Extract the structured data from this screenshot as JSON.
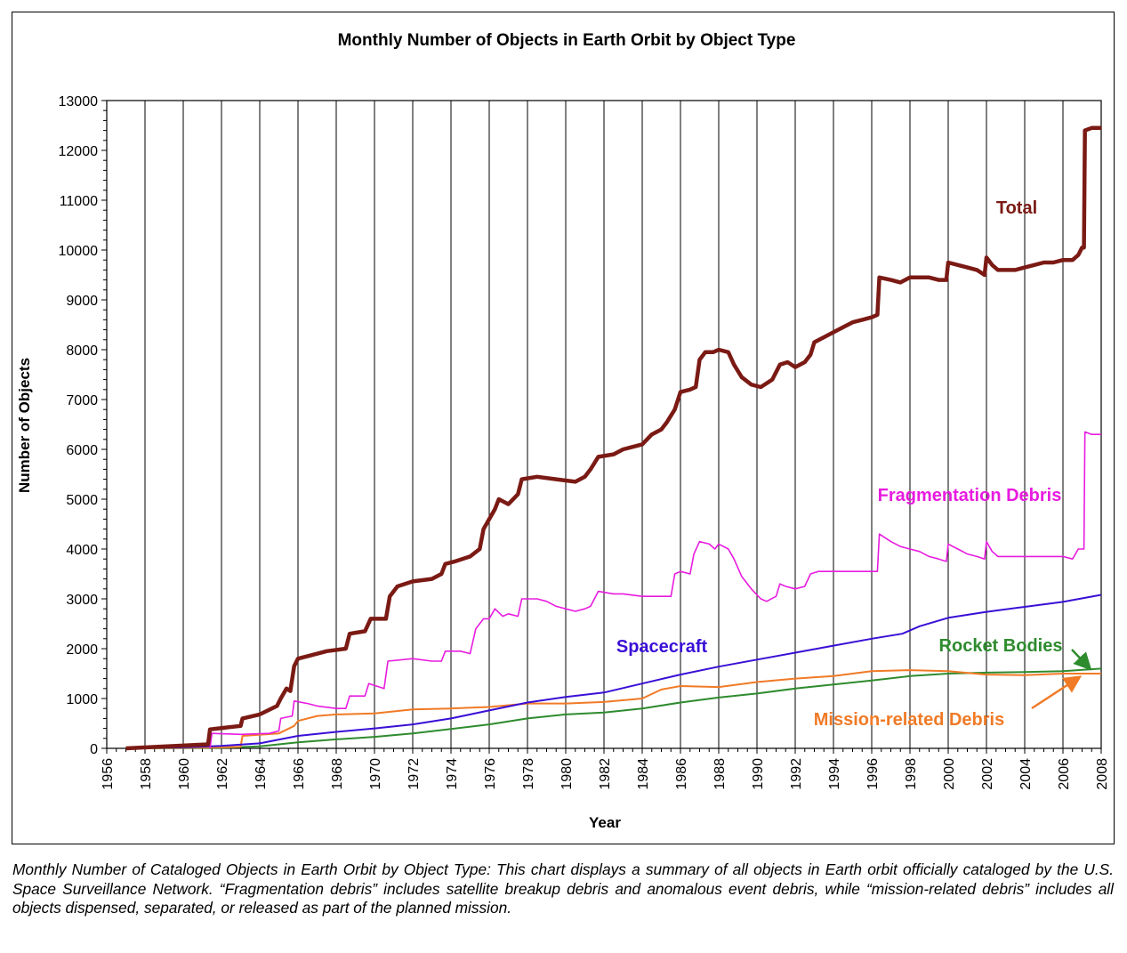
{
  "chart_data": {
    "type": "line",
    "title": "Monthly Number of Objects in Earth Orbit by Object Type",
    "xlabel": "Year",
    "ylabel": "Number of Objects",
    "xlim": [
      1956,
      2008
    ],
    "ylim": [
      0,
      13000
    ],
    "x_ticks": [
      "1956",
      "1958",
      "1960",
      "1962",
      "1964",
      "1966",
      "1968",
      "1970",
      "1972",
      "1974",
      "1976",
      "1978",
      "1980",
      "1982",
      "1984",
      "1986",
      "1988",
      "1990",
      "1992",
      "1994",
      "1996",
      "1998",
      "2000",
      "2002",
      "2004",
      "2006",
      "2008"
    ],
    "y_ticks": [
      "0",
      "1000",
      "2000",
      "3000",
      "4000",
      "5000",
      "6000",
      "7000",
      "8000",
      "9000",
      "10000",
      "11000",
      "12000",
      "13000"
    ],
    "grid": {
      "vertical": true,
      "horizontal": false
    },
    "legend": "none (inline annotations)",
    "series": [
      {
        "name": "Total",
        "color": "#7B1A14",
        "points": [
          [
            1957.0,
            0
          ],
          [
            1961.3,
            80
          ],
          [
            1961.4,
            380
          ],
          [
            1963.0,
            450
          ],
          [
            1963.1,
            600
          ],
          [
            1964.0,
            680
          ],
          [
            1964.9,
            850
          ],
          [
            1965.1,
            1000
          ],
          [
            1965.4,
            1200
          ],
          [
            1965.6,
            1150
          ],
          [
            1965.8,
            1650
          ],
          [
            1966.0,
            1800
          ],
          [
            1966.5,
            1850
          ],
          [
            1967.5,
            1950
          ],
          [
            1968.5,
            2000
          ],
          [
            1968.7,
            2300
          ],
          [
            1969.5,
            2350
          ],
          [
            1969.8,
            2600
          ],
          [
            1970.6,
            2600
          ],
          [
            1970.8,
            3050
          ],
          [
            1971.2,
            3250
          ],
          [
            1972.0,
            3350
          ],
          [
            1973.0,
            3400
          ],
          [
            1973.5,
            3500
          ],
          [
            1973.7,
            3700
          ],
          [
            1974.2,
            3750
          ],
          [
            1975.0,
            3850
          ],
          [
            1975.5,
            4000
          ],
          [
            1975.7,
            4400
          ],
          [
            1976.0,
            4600
          ],
          [
            1976.3,
            4800
          ],
          [
            1976.5,
            5000
          ],
          [
            1977.0,
            4900
          ],
          [
            1977.5,
            5100
          ],
          [
            1977.7,
            5400
          ],
          [
            1978.5,
            5450
          ],
          [
            1979.5,
            5400
          ],
          [
            1980.5,
            5350
          ],
          [
            1981.0,
            5450
          ],
          [
            1981.3,
            5600
          ],
          [
            1981.7,
            5850
          ],
          [
            1982.5,
            5900
          ],
          [
            1983.0,
            6000
          ],
          [
            1983.5,
            6050
          ],
          [
            1984.0,
            6100
          ],
          [
            1984.5,
            6300
          ],
          [
            1985.0,
            6400
          ],
          [
            1985.3,
            6550
          ],
          [
            1985.7,
            6800
          ],
          [
            1986.0,
            7150
          ],
          [
            1986.5,
            7200
          ],
          [
            1986.8,
            7250
          ],
          [
            1987.0,
            7800
          ],
          [
            1987.3,
            7950
          ],
          [
            1987.7,
            7950
          ],
          [
            1988.0,
            8000
          ],
          [
            1988.5,
            7950
          ],
          [
            1988.8,
            7700
          ],
          [
            1989.2,
            7450
          ],
          [
            1989.7,
            7300
          ],
          [
            1990.2,
            7250
          ],
          [
            1990.8,
            7400
          ],
          [
            1991.2,
            7700
          ],
          [
            1991.6,
            7750
          ],
          [
            1992.0,
            7650
          ],
          [
            1992.5,
            7750
          ],
          [
            1992.8,
            7900
          ],
          [
            1993.0,
            8150
          ],
          [
            1993.5,
            8250
          ],
          [
            1994.0,
            8350
          ],
          [
            1994.5,
            8450
          ],
          [
            1995.0,
            8550
          ],
          [
            1995.5,
            8600
          ],
          [
            1996.0,
            8650
          ],
          [
            1996.3,
            8700
          ],
          [
            1996.4,
            9450
          ],
          [
            1997.0,
            9400
          ],
          [
            1997.5,
            9350
          ],
          [
            1998.0,
            9450
          ],
          [
            1998.5,
            9450
          ],
          [
            1999.0,
            9450
          ],
          [
            1999.5,
            9400
          ],
          [
            1999.9,
            9400
          ],
          [
            2000.0,
            9750
          ],
          [
            2000.5,
            9700
          ],
          [
            2001.0,
            9650
          ],
          [
            2001.5,
            9600
          ],
          [
            2001.9,
            9500
          ],
          [
            2002.0,
            9850
          ],
          [
            2002.3,
            9700
          ],
          [
            2002.6,
            9600
          ],
          [
            2003.0,
            9600
          ],
          [
            2003.5,
            9600
          ],
          [
            2004.0,
            9650
          ],
          [
            2004.5,
            9700
          ],
          [
            2005.0,
            9750
          ],
          [
            2005.5,
            9750
          ],
          [
            2006.0,
            9800
          ],
          [
            2006.5,
            9800
          ],
          [
            2006.8,
            9900
          ],
          [
            2007.0,
            10050
          ],
          [
            2007.1,
            10050
          ],
          [
            2007.15,
            12400
          ],
          [
            2007.5,
            12450
          ],
          [
            2008.0,
            12450
          ]
        ]
      },
      {
        "name": "Fragmentation Debris",
        "color": "#E81BE0",
        "points": [
          [
            1961.4,
            0
          ],
          [
            1961.5,
            300
          ],
          [
            1963.0,
            280
          ],
          [
            1964.5,
            300
          ],
          [
            1965.0,
            350
          ],
          [
            1965.1,
            600
          ],
          [
            1965.7,
            650
          ],
          [
            1965.8,
            950
          ],
          [
            1966.5,
            900
          ],
          [
            1967.0,
            850
          ],
          [
            1968.0,
            800
          ],
          [
            1968.5,
            800
          ],
          [
            1968.7,
            1050
          ],
          [
            1969.5,
            1050
          ],
          [
            1969.7,
            1300
          ],
          [
            1970.5,
            1200
          ],
          [
            1970.7,
            1750
          ],
          [
            1972.0,
            1800
          ],
          [
            1973.0,
            1750
          ],
          [
            1973.5,
            1750
          ],
          [
            1973.7,
            1950
          ],
          [
            1974.5,
            1950
          ],
          [
            1975.0,
            1900
          ],
          [
            1975.3,
            2400
          ],
          [
            1975.7,
            2600
          ],
          [
            1976.0,
            2600
          ],
          [
            1976.3,
            2800
          ],
          [
            1976.7,
            2650
          ],
          [
            1977.0,
            2700
          ],
          [
            1977.5,
            2650
          ],
          [
            1977.7,
            3000
          ],
          [
            1978.5,
            3000
          ],
          [
            1979.0,
            2950
          ],
          [
            1979.5,
            2850
          ],
          [
            1980.0,
            2800
          ],
          [
            1980.5,
            2750
          ],
          [
            1981.0,
            2800
          ],
          [
            1981.3,
            2850
          ],
          [
            1981.7,
            3150
          ],
          [
            1982.5,
            3100
          ],
          [
            1983.0,
            3100
          ],
          [
            1984.0,
            3050
          ],
          [
            1985.0,
            3050
          ],
          [
            1985.5,
            3050
          ],
          [
            1985.7,
            3500
          ],
          [
            1986.0,
            3550
          ],
          [
            1986.5,
            3500
          ],
          [
            1986.7,
            3900
          ],
          [
            1987.0,
            4150
          ],
          [
            1987.5,
            4100
          ],
          [
            1987.8,
            4000
          ],
          [
            1988.0,
            4100
          ],
          [
            1988.5,
            4000
          ],
          [
            1988.8,
            3800
          ],
          [
            1989.2,
            3450
          ],
          [
            1989.7,
            3200
          ],
          [
            1990.2,
            3000
          ],
          [
            1990.5,
            2950
          ],
          [
            1991.0,
            3050
          ],
          [
            1991.2,
            3300
          ],
          [
            1991.5,
            3250
          ],
          [
            1992.0,
            3200
          ],
          [
            1992.5,
            3250
          ],
          [
            1992.8,
            3500
          ],
          [
            1993.2,
            3550
          ],
          [
            1994.0,
            3550
          ],
          [
            1995.0,
            3550
          ],
          [
            1996.3,
            3550
          ],
          [
            1996.4,
            4300
          ],
          [
            1997.0,
            4150
          ],
          [
            1997.5,
            4050
          ],
          [
            1998.0,
            4000
          ],
          [
            1998.5,
            3950
          ],
          [
            1999.0,
            3850
          ],
          [
            1999.5,
            3800
          ],
          [
            1999.9,
            3750
          ],
          [
            2000.0,
            4100
          ],
          [
            2000.5,
            4000
          ],
          [
            2001.0,
            3900
          ],
          [
            2001.5,
            3850
          ],
          [
            2001.9,
            3800
          ],
          [
            2002.0,
            4150
          ],
          [
            2002.3,
            3950
          ],
          [
            2002.6,
            3850
          ],
          [
            2003.0,
            3850
          ],
          [
            2004.0,
            3850
          ],
          [
            2005.0,
            3850
          ],
          [
            2005.5,
            3850
          ],
          [
            2006.0,
            3850
          ],
          [
            2006.5,
            3800
          ],
          [
            2006.8,
            4000
          ],
          [
            2007.1,
            4000
          ],
          [
            2007.15,
            6350
          ],
          [
            2007.5,
            6300
          ],
          [
            2008.0,
            6300
          ]
        ]
      },
      {
        "name": "Spacecraft",
        "color": "#3A0FD6",
        "points": [
          [
            1957.0,
            0
          ],
          [
            1960.0,
            20
          ],
          [
            1962.0,
            50
          ],
          [
            1964.0,
            100
          ],
          [
            1966.0,
            250
          ],
          [
            1968.0,
            330
          ],
          [
            1970.0,
            400
          ],
          [
            1972.0,
            480
          ],
          [
            1974.0,
            600
          ],
          [
            1976.0,
            760
          ],
          [
            1978.0,
            920
          ],
          [
            1980.0,
            1030
          ],
          [
            1982.0,
            1120
          ],
          [
            1984.0,
            1300
          ],
          [
            1986.0,
            1480
          ],
          [
            1988.0,
            1640
          ],
          [
            1990.0,
            1780
          ],
          [
            1992.0,
            1920
          ],
          [
            1994.0,
            2060
          ],
          [
            1996.0,
            2200
          ],
          [
            1997.6,
            2300
          ],
          [
            1998.5,
            2450
          ],
          [
            2000.0,
            2620
          ],
          [
            2002.0,
            2740
          ],
          [
            2004.0,
            2840
          ],
          [
            2006.0,
            2940
          ],
          [
            2008.0,
            3080
          ]
        ]
      },
      {
        "name": "Rocket Bodies",
        "color": "#2E8B2E",
        "points": [
          [
            1957.0,
            0
          ],
          [
            1962.0,
            10
          ],
          [
            1964.0,
            40
          ],
          [
            1966.0,
            120
          ],
          [
            1968.0,
            180
          ],
          [
            1970.0,
            230
          ],
          [
            1972.0,
            300
          ],
          [
            1974.0,
            390
          ],
          [
            1976.0,
            480
          ],
          [
            1978.0,
            600
          ],
          [
            1980.0,
            680
          ],
          [
            1982.0,
            720
          ],
          [
            1984.0,
            800
          ],
          [
            1986.0,
            920
          ],
          [
            1988.0,
            1020
          ],
          [
            1990.0,
            1100
          ],
          [
            1992.0,
            1200
          ],
          [
            1994.0,
            1280
          ],
          [
            1996.0,
            1360
          ],
          [
            1998.0,
            1450
          ],
          [
            2000.0,
            1500
          ],
          [
            2002.0,
            1520
          ],
          [
            2004.0,
            1530
          ],
          [
            2006.0,
            1550
          ],
          [
            2008.0,
            1600
          ]
        ]
      },
      {
        "name": "Mission-related Debris",
        "color": "#F07A26",
        "points": [
          [
            1957.0,
            0
          ],
          [
            1962.0,
            20
          ],
          [
            1963.0,
            30
          ],
          [
            1963.1,
            250
          ],
          [
            1965.0,
            300
          ],
          [
            1965.8,
            450
          ],
          [
            1966.0,
            550
          ],
          [
            1967.0,
            650
          ],
          [
            1968.0,
            680
          ],
          [
            1970.0,
            700
          ],
          [
            1972.0,
            780
          ],
          [
            1974.0,
            800
          ],
          [
            1976.0,
            830
          ],
          [
            1978.0,
            900
          ],
          [
            1980.0,
            900
          ],
          [
            1982.0,
            930
          ],
          [
            1984.0,
            1000
          ],
          [
            1985.0,
            1180
          ],
          [
            1986.0,
            1250
          ],
          [
            1988.0,
            1230
          ],
          [
            1990.0,
            1330
          ],
          [
            1992.0,
            1400
          ],
          [
            1994.0,
            1450
          ],
          [
            1996.0,
            1550
          ],
          [
            1998.0,
            1570
          ],
          [
            2000.0,
            1550
          ],
          [
            2002.0,
            1480
          ],
          [
            2004.0,
            1470
          ],
          [
            2006.0,
            1500
          ],
          [
            2008.0,
            1500
          ]
        ]
      }
    ],
    "annotations": [
      {
        "text": "Total",
        "color": "#7B1A14"
      },
      {
        "text": "Fragmentation Debris",
        "color": "#E81BE0"
      },
      {
        "text": "Spacecraft",
        "color": "#3A0FD6"
      },
      {
        "text": "Rocket Bodies",
        "color": "#2E8B2E"
      },
      {
        "text": "Mission-related Debris",
        "color": "#F07A26"
      }
    ]
  },
  "caption": "Monthly Number of Cataloged Objects in Earth Orbit by Object Type: This chart displays a summary of all objects in Earth orbit officially cataloged by the U.S. Space Surveillance Network. “Fragmentation debris” includes satellite breakup debris and anomalous event debris, while “mission-related debris” includes all objects dispensed, separated, or released as part of the planned mission."
}
